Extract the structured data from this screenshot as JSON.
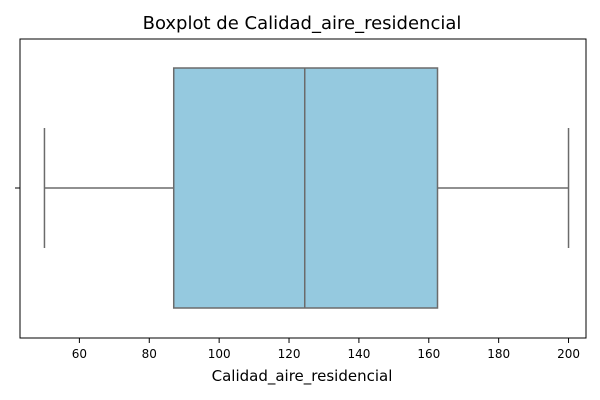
{
  "chart_data": {
    "type": "boxplot",
    "title": "Boxplot de Calidad_aire_residencial",
    "xlabel": "Calidad_aire_residencial",
    "ylabel": "",
    "xlim": [
      43,
      205
    ],
    "x_ticks": [
      60,
      80,
      100,
      120,
      140,
      160,
      180,
      200
    ],
    "orientation": "horizontal",
    "grid": false,
    "box": {
      "min": 50,
      "q1": 87,
      "median": 124.5,
      "q3": 162.5,
      "max": 200
    },
    "colors": {
      "box_fill": "#95C9DF",
      "line": "#6b6b6b",
      "axis": "#000000"
    }
  }
}
